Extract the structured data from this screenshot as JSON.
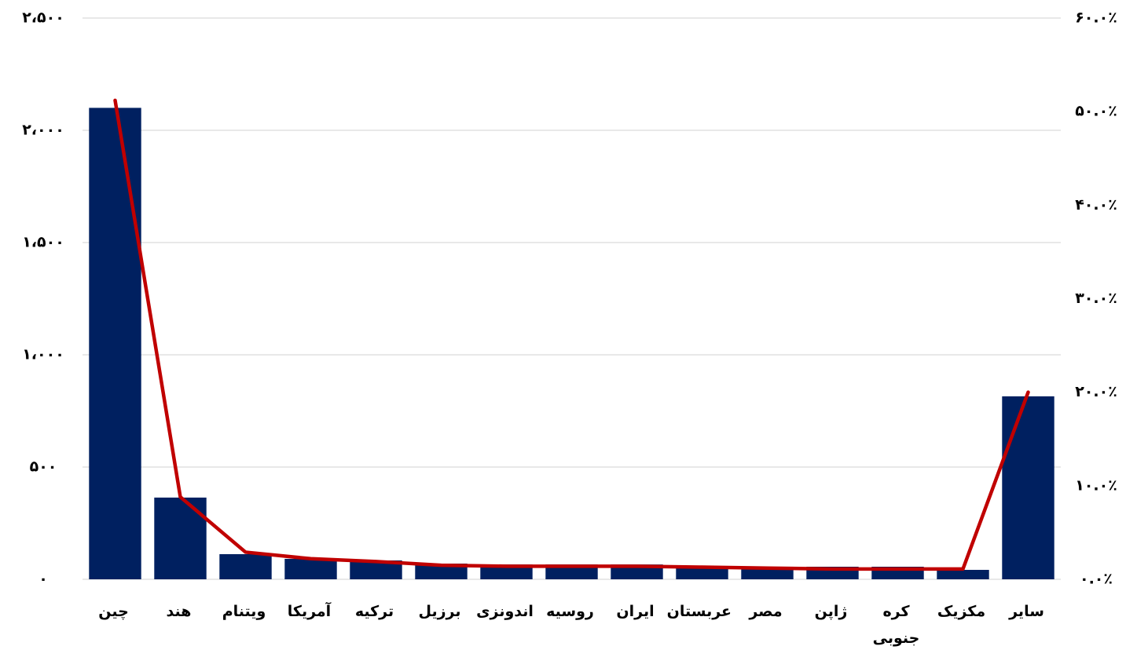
{
  "chart_data": {
    "type": "bar_line",
    "categories": [
      "چین",
      "هند",
      "ویتنام",
      "آمریکا",
      "ترکیه",
      "برزیل",
      "اندونزی",
      "روسیه",
      "ایران",
      "عربستان",
      "مصر",
      "ژاپن",
      "کره جنوبی",
      "مکزیک",
      "سایر"
    ],
    "series": [
      {
        "type": "bar",
        "color": "#002060",
        "values": [
          2100,
          364,
          112,
          91,
          84,
          70,
          66,
          66,
          66,
          59,
          56,
          56,
          56,
          42,
          815
        ]
      },
      {
        "type": "line",
        "axis": "y2",
        "color": "#c00000",
        "values": [
          51.2,
          8.8,
          2.9,
          2.2,
          1.9,
          1.5,
          1.4,
          1.4,
          1.4,
          1.3,
          1.2,
          1.1,
          1.1,
          1.1,
          20.0
        ]
      }
    ],
    "ylim": [
      0,
      2500
    ],
    "yticks": [
      {
        "value": 0,
        "label": "۰"
      },
      {
        "value": 500,
        "label": "۵۰۰"
      },
      {
        "value": 1000,
        "label": "۱،۰۰۰"
      },
      {
        "value": 1500,
        "label": "۱،۵۰۰"
      },
      {
        "value": 2000,
        "label": "۲،۰۰۰"
      },
      {
        "value": 2500,
        "label": "۲،۵۰۰"
      }
    ],
    "y2lim": [
      0,
      60
    ],
    "y2ticks": [
      {
        "value": 0,
        "label": "۰.۰٪"
      },
      {
        "value": 10,
        "label": "۱۰.۰٪"
      },
      {
        "value": 20,
        "label": "۲۰.۰٪"
      },
      {
        "value": 30,
        "label": "۳۰.۰٪"
      },
      {
        "value": 40,
        "label": "۴۰.۰٪"
      },
      {
        "value": 50,
        "label": "۵۰.۰٪"
      },
      {
        "value": 60,
        "label": "۶۰.۰٪"
      }
    ],
    "grid": true
  }
}
